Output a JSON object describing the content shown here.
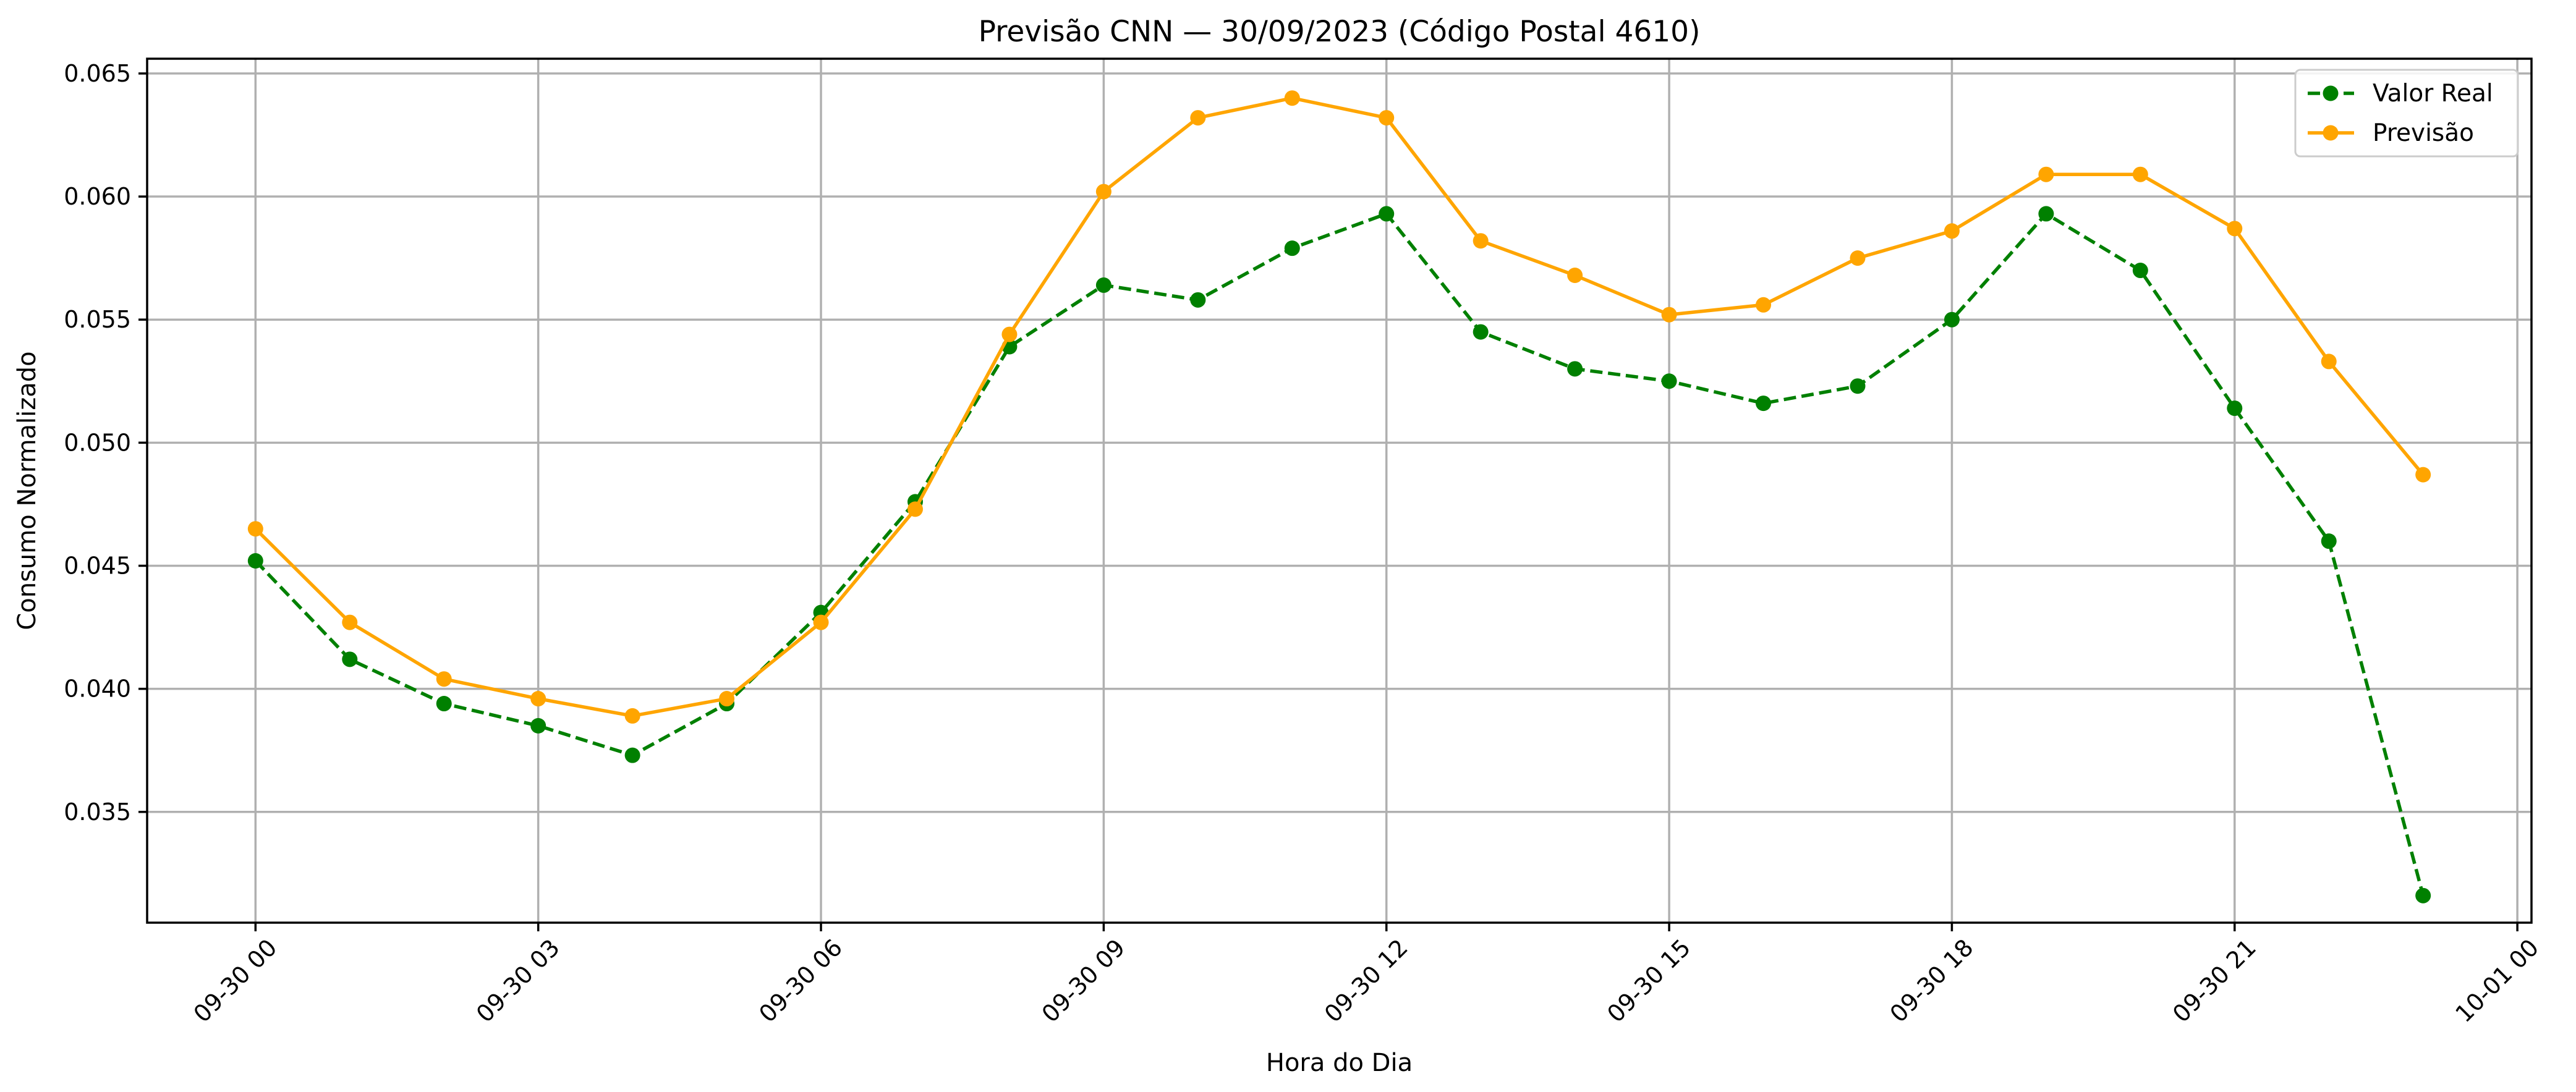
{
  "chart_data": {
    "type": "line",
    "title": "Previsão CNN — 30/09/2023 (Código Postal 4610)",
    "xlabel": "Hora do Dia",
    "ylabel": "Consumo Normalizado",
    "x_hours": [
      0,
      1,
      2,
      3,
      4,
      5,
      6,
      7,
      8,
      9,
      10,
      11,
      12,
      13,
      14,
      15,
      16,
      17,
      18,
      19,
      20,
      21,
      22,
      23
    ],
    "xlim": [
      -1.15,
      24.15
    ],
    "ylim": [
      0.0305,
      0.0656
    ],
    "x_ticks": [
      {
        "value": 0,
        "label": "09-30 00"
      },
      {
        "value": 3,
        "label": "09-30 03"
      },
      {
        "value": 6,
        "label": "09-30 06"
      },
      {
        "value": 9,
        "label": "09-30 09"
      },
      {
        "value": 12,
        "label": "09-30 12"
      },
      {
        "value": 15,
        "label": "09-30 15"
      },
      {
        "value": 18,
        "label": "09-30 18"
      },
      {
        "value": 21,
        "label": "09-30 21"
      },
      {
        "value": 24,
        "label": "10-01 00"
      }
    ],
    "y_ticks": [
      {
        "value": 0.035,
        "label": "0.035"
      },
      {
        "value": 0.04,
        "label": "0.040"
      },
      {
        "value": 0.045,
        "label": "0.045"
      },
      {
        "value": 0.05,
        "label": "0.050"
      },
      {
        "value": 0.055,
        "label": "0.055"
      },
      {
        "value": 0.06,
        "label": "0.060"
      },
      {
        "value": 0.065,
        "label": "0.065"
      }
    ],
    "grid": true,
    "legend_position": "top-right",
    "series": [
      {
        "name": "Valor Real",
        "color": "#008000",
        "dashed": true,
        "values": [
          0.0452,
          0.0412,
          0.0394,
          0.0385,
          0.0373,
          0.0394,
          0.0431,
          0.0476,
          0.0539,
          0.0564,
          0.0558,
          0.0579,
          0.0593,
          0.0545,
          0.053,
          0.0525,
          0.0516,
          0.0523,
          0.055,
          0.0593,
          0.057,
          0.0514,
          0.046,
          0.0316
        ]
      },
      {
        "name": "Previsão",
        "color": "#FFA500",
        "dashed": false,
        "values": [
          0.0465,
          0.0427,
          0.0404,
          0.0396,
          0.0389,
          0.0396,
          0.0427,
          0.0473,
          0.0544,
          0.0602,
          0.0632,
          0.064,
          0.0632,
          0.0582,
          0.0568,
          0.0552,
          0.0556,
          0.0575,
          0.0586,
          0.0609,
          0.0609,
          0.0587,
          0.0533,
          0.0487
        ]
      }
    ]
  }
}
